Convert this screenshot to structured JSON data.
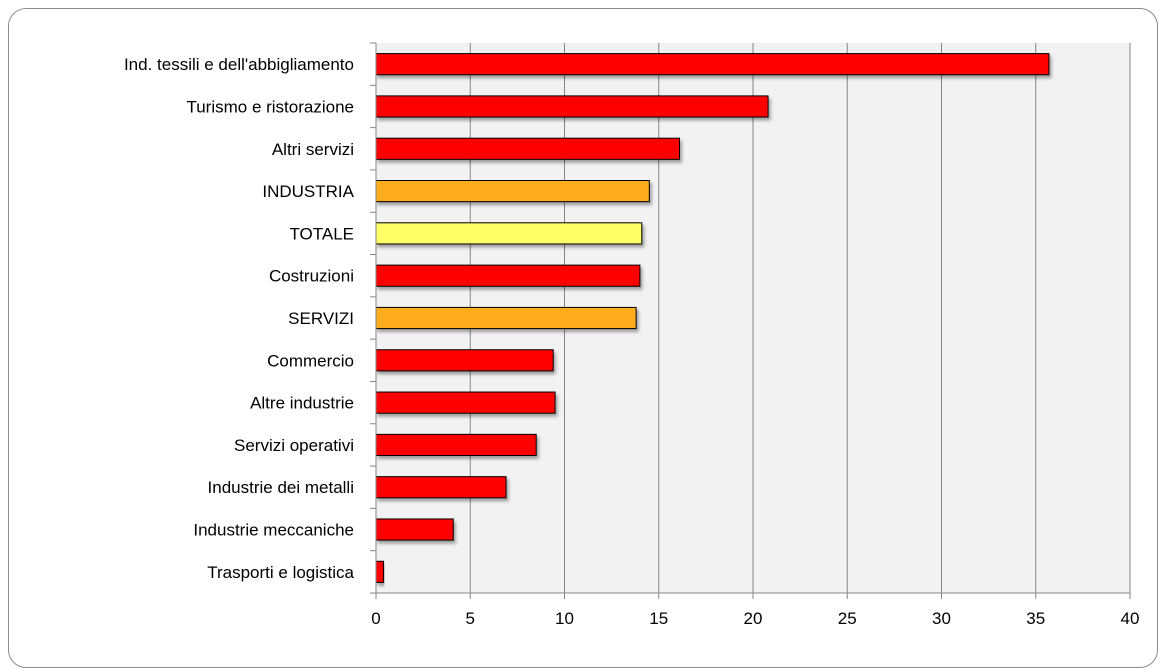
{
  "chart_data": {
    "type": "bar",
    "orientation": "horizontal",
    "categories": [
      "Ind. tessili e dell'abbigliamento",
      "Turismo e ristorazione",
      "Altri servizi",
      "INDUSTRIA",
      "TOTALE",
      "Costruzioni",
      "SERVIZI",
      "Commercio",
      "Altre industrie",
      "Servizi operativi",
      "Industrie dei metalli",
      "Industrie meccaniche",
      "Trasporti e logistica"
    ],
    "values": [
      35.7,
      20.8,
      16.1,
      14.5,
      14.1,
      14.0,
      13.8,
      9.4,
      9.5,
      8.5,
      6.9,
      4.1,
      0.4
    ],
    "bar_colors": [
      "#ff0000",
      "#ff0000",
      "#ff0000",
      "#ffad1f",
      "#ffff66",
      "#ff0000",
      "#ffad1f",
      "#ff0000",
      "#ff0000",
      "#ff0000",
      "#ff0000",
      "#ff0000",
      "#ff0000"
    ],
    "xlim": [
      0,
      40
    ],
    "xticks": [
      "0",
      "5",
      "10",
      "15",
      "20",
      "25",
      "30",
      "35",
      "40"
    ],
    "grid": true,
    "plot_background": "#f2f2f2",
    "gridline_color": "#868686",
    "legend": "none"
  }
}
